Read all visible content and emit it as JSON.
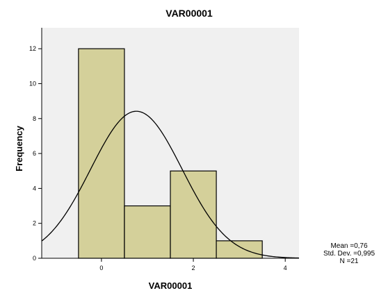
{
  "chart_data": {
    "type": "bar",
    "title": "VAR00001",
    "xlabel": "VAR00001",
    "ylabel": "Frequency",
    "bin_width": 1,
    "bins": [
      {
        "center": 0,
        "count": 12
      },
      {
        "center": 1,
        "count": 3
      },
      {
        "center": 2,
        "count": 5
      },
      {
        "center": 3,
        "count": 1
      }
    ],
    "xlim": [
      -1.3,
      4.3
    ],
    "ylim": [
      0,
      13.2
    ],
    "xticks": [
      0,
      2,
      4
    ],
    "yticks": [
      0,
      2,
      4,
      6,
      8,
      10,
      12
    ],
    "normal_curve": {
      "mean": 0.76,
      "std_dev": 0.995,
      "n": 21
    },
    "stats_text": {
      "mean": "Mean =0,76",
      "std_dev": "Std. Dev. =0,995",
      "n": "N =21"
    },
    "colors": {
      "plot_background": "#f0f0f0",
      "bar_fill": "#d4d09a",
      "bar_stroke": "#000000",
      "curve": "#000000"
    },
    "grid": false,
    "legend": "right"
  }
}
